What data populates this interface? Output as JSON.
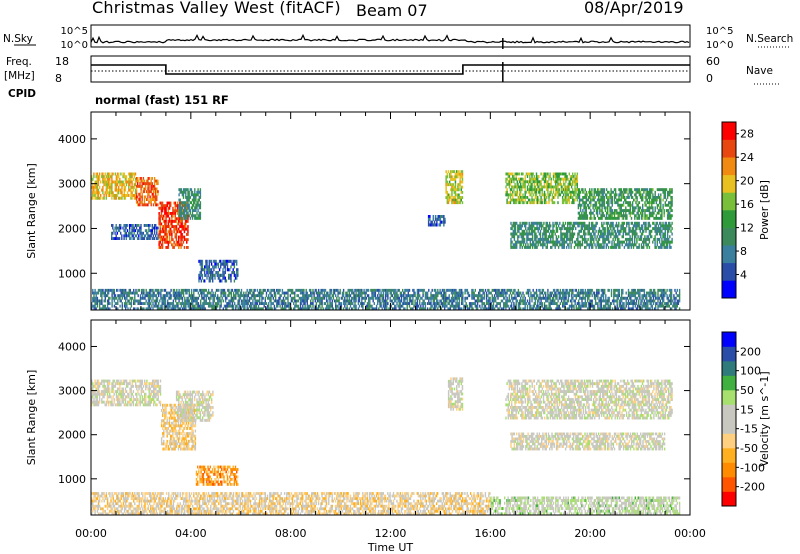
{
  "header": {
    "title": "Christmas Valley West (fitACF)",
    "beam": "Beam 07",
    "date": "08/Apr/2019"
  },
  "status_panels": {
    "nsky_label": "N.Sky",
    "nsearch_label": "N.Search",
    "noise_ticks": [
      "10^5",
      "10^0"
    ],
    "freq_label_line1": "Freq.",
    "freq_label_line2": "[MHz]",
    "freq_ticks": [
      "18",
      "8"
    ],
    "nave_label": "Nave",
    "nave_ticks": [
      "60",
      "0"
    ],
    "cpid_label": "CPID",
    "cpid_value": "normal (fast) 151 RF"
  },
  "x_axis": {
    "label": "Time UT",
    "ticks": [
      "00:00",
      "04:00",
      "08:00",
      "12:00",
      "16:00",
      "20:00",
      "00:00"
    ]
  },
  "colors": {
    "power": [
      "#0000ff",
      "#2a4ea8",
      "#3a7f9e",
      "#3c8a5c",
      "#2e9a3a",
      "#7abf3a",
      "#e8c020",
      "#f08a10",
      "#e84810",
      "#ff0000"
    ],
    "velocity": [
      "#ff0000",
      "#ff5500",
      "#ff8c00",
      "#ffb020",
      "#ffd080",
      "#c8c8c0",
      "#c8c8c0",
      "#a8e070",
      "#40b040",
      "#2f7a7a",
      "#2a4ea8",
      "#0000ff"
    ]
  },
  "chart_data": [
    {
      "type": "heatmap",
      "name_panel": "power",
      "xlabel": "",
      "ylabel": "Slant Range [km]",
      "x_range_hours": [
        0,
        24
      ],
      "ylim": [
        180,
        4600
      ],
      "y_ticks": [
        1000,
        2000,
        3000,
        4000
      ],
      "colorbar": {
        "label": "Power [dB]",
        "range": [
          0,
          30
        ],
        "ticks": [
          4,
          8,
          12,
          16,
          20,
          24,
          28
        ]
      },
      "regions": [
        {
          "t0": 0.0,
          "t1": 1.8,
          "r0": 2650,
          "r1": 3250,
          "level": 20
        },
        {
          "t0": 1.8,
          "t1": 2.7,
          "r0": 2500,
          "r1": 3150,
          "level": 24
        },
        {
          "t0": 2.7,
          "t1": 3.9,
          "r0": 1550,
          "r1": 2600,
          "level": 26
        },
        {
          "t0": 3.5,
          "t1": 4.4,
          "r0": 2200,
          "r1": 2900,
          "level": 10
        },
        {
          "t0": 0.8,
          "t1": 2.7,
          "r0": 1750,
          "r1": 2100,
          "level": 6
        },
        {
          "t0": 4.3,
          "t1": 5.9,
          "r0": 800,
          "r1": 1300,
          "level": 6
        },
        {
          "t0": 14.2,
          "t1": 14.9,
          "r0": 2550,
          "r1": 3300,
          "level": 18
        },
        {
          "t0": 13.5,
          "t1": 14.2,
          "r0": 2050,
          "r1": 2300,
          "level": 6
        },
        {
          "t0": 16.6,
          "t1": 19.5,
          "r0": 2550,
          "r1": 3250,
          "level": 16
        },
        {
          "t0": 19.5,
          "t1": 23.3,
          "r0": 2200,
          "r1": 2900,
          "level": 12
        },
        {
          "t0": 16.8,
          "t1": 23.3,
          "r0": 1550,
          "r1": 2150,
          "level": 10
        },
        {
          "t0": 0.0,
          "t1": 23.6,
          "r0": 180,
          "r1": 650,
          "level": 8
        }
      ]
    },
    {
      "type": "heatmap",
      "name_panel": "velocity",
      "xlabel": "Time UT",
      "ylabel": "Slant Range [km]",
      "x_range_hours": [
        0,
        24
      ],
      "ylim": [
        180,
        4600
      ],
      "y_ticks": [
        1000,
        2000,
        3000,
        4000
      ],
      "colorbar": {
        "label": "Velocity [m s^-1]",
        "range": [
          -250,
          250
        ],
        "ticks": [
          200,
          100,
          50,
          15,
          -15,
          -50,
          -100,
          -200
        ]
      },
      "regions": [
        {
          "t0": 0.0,
          "t1": 2.8,
          "r0": 2650,
          "r1": 3250,
          "level": 0
        },
        {
          "t0": 2.8,
          "t1": 4.2,
          "r0": 1650,
          "r1": 2700,
          "level": -60
        },
        {
          "t0": 3.4,
          "t1": 4.9,
          "r0": 2300,
          "r1": 3000,
          "level": 0
        },
        {
          "t0": 4.2,
          "t1": 5.9,
          "r0": 850,
          "r1": 1300,
          "level": -120
        },
        {
          "t0": 14.3,
          "t1": 14.9,
          "r0": 2550,
          "r1": 3300,
          "level": 0
        },
        {
          "t0": 16.6,
          "t1": 23.3,
          "r0": 2350,
          "r1": 3250,
          "level": 0
        },
        {
          "t0": 16.8,
          "t1": 23.0,
          "r0": 1650,
          "r1": 2050,
          "level": 0
        },
        {
          "t0": 0.0,
          "t1": 16.0,
          "r0": 180,
          "r1": 700,
          "level": -45
        },
        {
          "t0": 16.0,
          "t1": 23.6,
          "r0": 180,
          "r1": 600,
          "level": 30
        }
      ]
    }
  ]
}
